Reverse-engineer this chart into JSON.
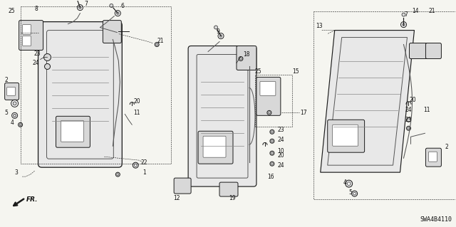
{
  "background_color": "#f5f5f0",
  "line_color": "#1a1a1a",
  "text_color": "#111111",
  "fig_width": 6.4,
  "fig_height": 3.19,
  "dpi": 100,
  "diagram_label": "SWA4B4110",
  "gray_fill": "#d8d8d8",
  "dark_gray": "#555555",
  "mid_gray": "#888888",
  "light_gray": "#cccccc",
  "parts_fontsize": 5.5,
  "label_fontsize": 6.0
}
